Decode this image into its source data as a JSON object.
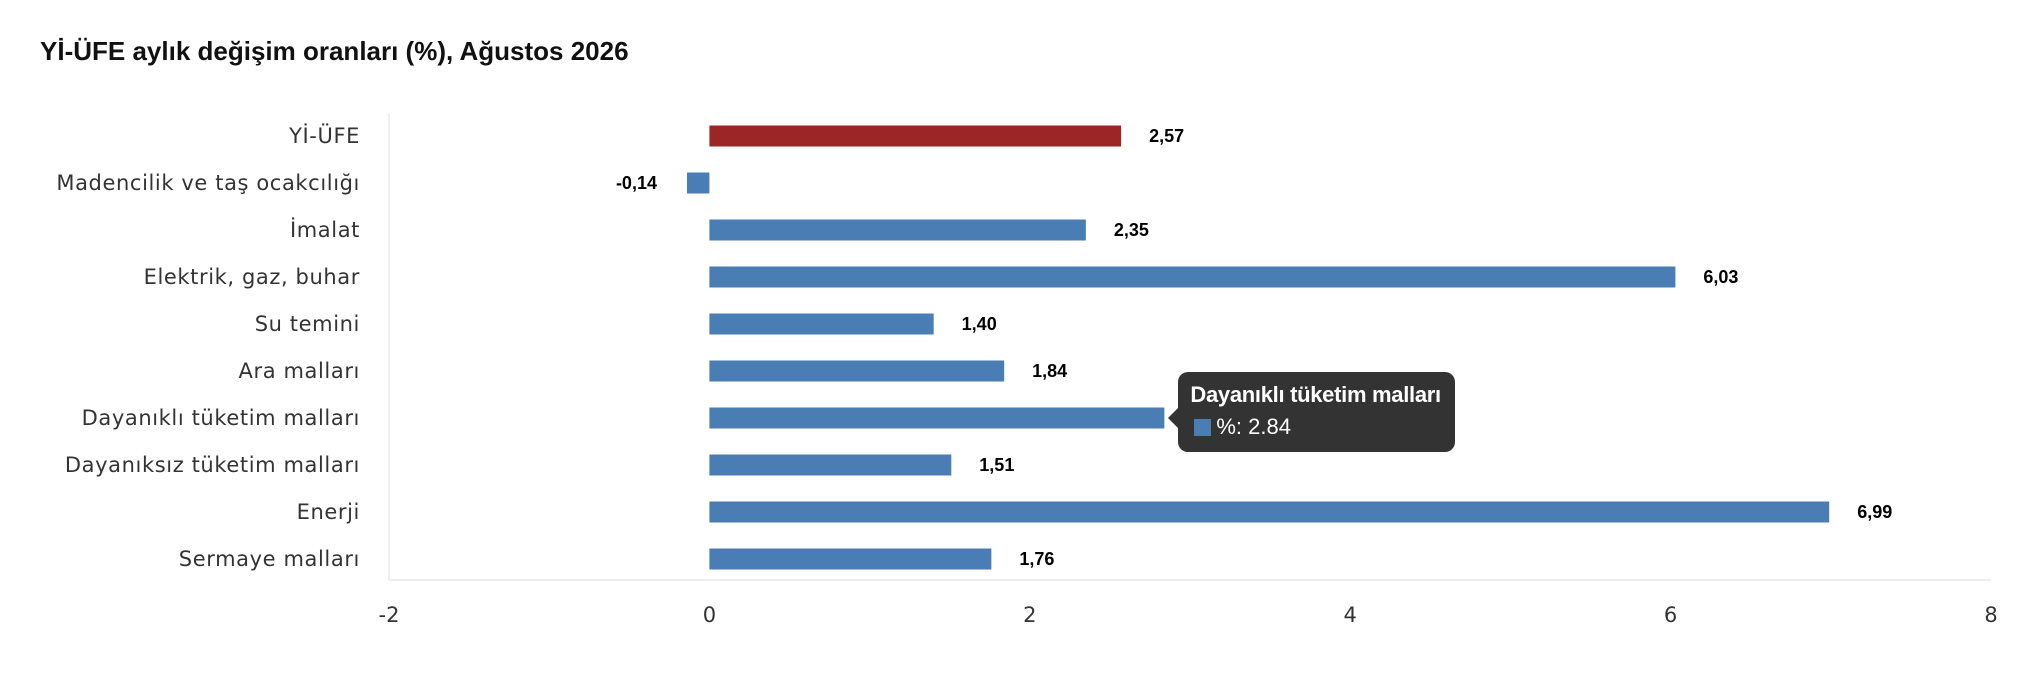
{
  "chart_data": {
    "type": "bar",
    "orientation": "horizontal",
    "title": "Yİ-ÜFE aylık değişim oranları (%), Ağustos 2026",
    "categories": [
      "Yİ-ÜFE",
      "Madencilik ve taş ocakcılığı",
      "İmalat",
      "Elektrik, gaz, buhar",
      "Su temini",
      "Ara malları",
      "Dayanıklı tüketim malları",
      "Dayanıksız tüketim malları",
      "Enerji",
      "Sermaye malları"
    ],
    "values": [
      2.57,
      -0.14,
      2.35,
      6.03,
      1.4,
      1.84,
      2.84,
      1.51,
      6.99,
      1.76
    ],
    "data_labels": [
      "2,57",
      "-0,14",
      "2,35",
      "6,03",
      "1,40",
      "1,84",
      "2,84",
      "1,51",
      "6,99",
      "1,76"
    ],
    "highlight_index": 0,
    "colors": {
      "default": "#4a7db3",
      "highlight": "#9c2626"
    },
    "xlim": [
      -2,
      8
    ],
    "xticks": [
      -2,
      0,
      2,
      4,
      6,
      8
    ],
    "xtick_labels": [
      "-2",
      "0",
      "2",
      "4",
      "6",
      "8"
    ],
    "xlabel": "",
    "ylabel": "",
    "grid": false,
    "legend": "none"
  },
  "tooltip": {
    "visible": true,
    "category_index": 6,
    "title": "Dayanıklı tüketim malları",
    "row_text": "%: 2.84",
    "swatch_color": "#4a7db3"
  }
}
